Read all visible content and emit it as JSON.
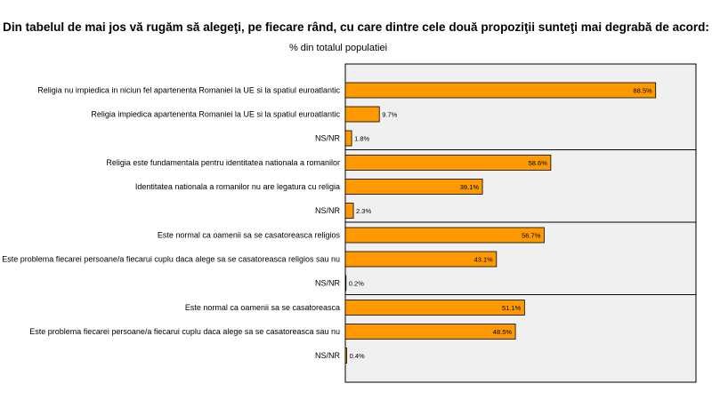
{
  "chart_data": {
    "type": "bar",
    "orientation": "horizontal",
    "title": "Din tabelul de mai jos vă rugăm să alegeţi, pe fiecare rând, cu care dintre cele două propoziţii sunteţi mai degrabă de acord:",
    "subtitle": "% din totalul populatiei",
    "xlim": [
      0,
      100
    ],
    "value_suffix": "%",
    "bar_color": "#FF9900",
    "plot_background": "#F0F0F0",
    "groups": [
      {
        "items": [
          {
            "label": "Religia nu impiedica in niciun fel apartenenta Romaniei la UE si la spatiul euroatlantic",
            "value": 88.5
          },
          {
            "label": "Religia impiedica apartenenta Romaniei la UE si la spatiul euroatlantic",
            "value": 9.7
          },
          {
            "label": "NS/NR",
            "value": 1.8
          }
        ]
      },
      {
        "items": [
          {
            "label": "Religia este fundamentala pentru identitatea nationala a romanilor",
            "value": 58.6
          },
          {
            "label": "Identitatea nationala a romanilor nu are legatura cu religia",
            "value": 39.1
          },
          {
            "label": "NS/NR",
            "value": 2.3
          }
        ]
      },
      {
        "items": [
          {
            "label": "Este normal ca oamenii sa se casatoreasca religios",
            "value": 56.7
          },
          {
            "label": "Este problema fiecarei persoane/a fiecarui cuplu daca alege sa se casatoreasca religios sau nu",
            "value": 43.1
          },
          {
            "label": "NS/NR",
            "value": 0.2
          }
        ]
      },
      {
        "items": [
          {
            "label": "Este normal ca oamenii sa se casatoreasca",
            "value": 51.1
          },
          {
            "label": "Este problema fiecarei persoane/a fiecarui cuplu daca alege sa se casatoreasca sau nu",
            "value": 48.5
          },
          {
            "label": "NS/NR",
            "value": 0.4
          }
        ]
      }
    ]
  }
}
